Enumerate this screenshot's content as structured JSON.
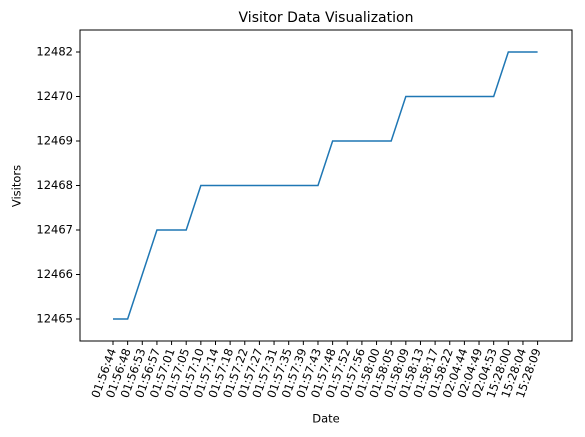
{
  "chart_data": {
    "type": "line",
    "title": "Visitor Data Visualization",
    "x_label": "Date",
    "y_label": "Visitors",
    "categories": [
      "01:56:44",
      "01:56:48",
      "01:56:53",
      "01:56:57",
      "01:57:01",
      "01:57:05",
      "01:57:10",
      "01:57:14",
      "01:57:18",
      "01:57:22",
      "01:57:27",
      "01:57:31",
      "01:57:35",
      "01:57:39",
      "01:57:43",
      "01:57:48",
      "01:57:52",
      "01:57:56",
      "01:58:00",
      "01:58:05",
      "01:58:09",
      "01:58:13",
      "01:58:17",
      "01:58:22",
      "02:04:44",
      "02:04:49",
      "02:04:53",
      "15:28:00",
      "15:28:04",
      "15:28:09"
    ],
    "values": [
      12465,
      12465,
      12466,
      12467,
      12467,
      12467,
      12468,
      12468,
      12468,
      12468,
      12468,
      12468,
      12468,
      12468,
      12468,
      12469,
      12469,
      12469,
      12469,
      12469,
      12470,
      12470,
      12470,
      12470,
      12470,
      12470,
      12470,
      12482,
      12482,
      12482
    ],
    "color": "#1f77b4",
    "y_categorical": true,
    "yticks": [
      12465,
      12466,
      12467,
      12468,
      12469,
      12470,
      12482
    ],
    "grid": false
  }
}
